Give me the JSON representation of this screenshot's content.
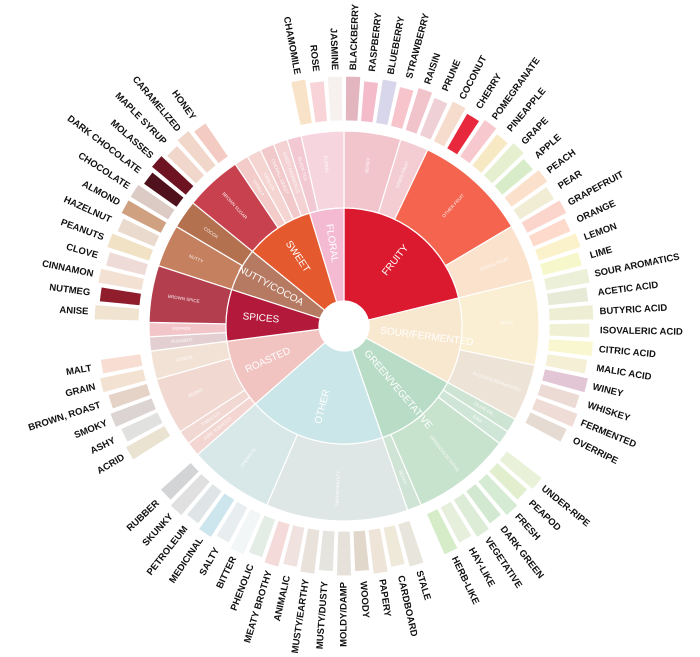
{
  "chart_data": {
    "type": "sunburst",
    "title": "",
    "categories": [
      {
        "name": "FRUITY",
        "color": "#dc1a2f",
        "children": [
          {
            "name": "BERRY",
            "color": "#f2c5cd",
            "children": [
              {
                "name": "BLACKBERRY",
                "color": "#e2b5bf"
              },
              {
                "name": "RASPBERRY",
                "color": "#f4bccb"
              },
              {
                "name": "BLUEBERRY",
                "color": "#d8d6ea"
              },
              {
                "name": "STRAWBERRY",
                "color": "#f7c4cc"
              }
            ]
          },
          {
            "name": "DRIED FRUIT",
            "color": "#f4cdd3",
            "children": [
              {
                "name": "RAISIN",
                "color": "#f1c3cb"
              },
              {
                "name": "PRUNE",
                "color": "#eed0d6"
              }
            ]
          },
          {
            "name": "OTHER FRUIT",
            "color": "#f4644e",
            "children": [
              {
                "name": "COCONUT",
                "color": "#f6dccc"
              },
              {
                "name": "CHERRY",
                "color": "#e8283d"
              },
              {
                "name": "POMEGRANATE",
                "color": "#f7c9cf"
              },
              {
                "name": "PINEAPPLE",
                "color": "#f8e9c5"
              },
              {
                "name": "GRAPE",
                "color": "#e6efd0"
              },
              {
                "name": "APPLE",
                "color": "#d9ecc9"
              },
              {
                "name": "PEACH",
                "color": "#fbe1cc"
              },
              {
                "name": "PEAR",
                "color": "#f1ecd4"
              }
            ]
          },
          {
            "name": "CITRUS FRUIT",
            "color": "#fbe2cd",
            "children": [
              {
                "name": "GRAPEFRUIT",
                "color": "#fbd5cc"
              },
              {
                "name": "ORANGE",
                "color": "#fddacb"
              },
              {
                "name": "LEMON",
                "color": "#fbf2cc"
              },
              {
                "name": "LIME",
                "color": "#f6f8cc"
              }
            ]
          }
        ]
      },
      {
        "name": "SOUR/FERMENTED",
        "color": "#f8e8cf",
        "children": [
          {
            "name": "SOUR",
            "color": "#faefd2",
            "children": [
              {
                "name": "SOUR AROMATICS",
                "color": "#ecf0d9"
              },
              {
                "name": "ACETIC ACID",
                "color": "#e6ead7"
              },
              {
                "name": "BUTYRIC ACID",
                "color": "#eeeed4"
              },
              {
                "name": "ISOVALERIC ACID",
                "color": "#f0f1d4"
              },
              {
                "name": "CITRIC ACID",
                "color": "#f9f7cf"
              },
              {
                "name": "MALIC ACID",
                "color": "#f4efd5"
              }
            ]
          },
          {
            "name": "ALCOHOL/FERMENTED",
            "color": "#ede3d6",
            "children": [
              {
                "name": "WINEY",
                "color": "#e2c6d6"
              },
              {
                "name": "WHISKEY",
                "color": "#ecdad5"
              },
              {
                "name": "FERMENTED",
                "color": "#f0dcd7"
              },
              {
                "name": "OVERRIPE",
                "color": "#e6dbd2"
              }
            ]
          }
        ]
      },
      {
        "name": "GREEN/VEGETATIVE",
        "color": "#b8dcc5",
        "children": [
          {
            "name": "OLIVE OIL",
            "color": "#cde4d3",
            "children": []
          },
          {
            "name": "RAW",
            "color": "#cfe6d6",
            "children": []
          },
          {
            "name": "GREEN/VEGETATIVE",
            "color": "#c7e2cd",
            "children": [
              {
                "name": "UNDER-RIPE",
                "color": "#e9f2d9"
              },
              {
                "name": "PEAPOD",
                "color": "#e2efcf"
              },
              {
                "name": "FRESH",
                "color": "#d6ebd3"
              },
              {
                "name": "DARK GREEN",
                "color": "#d2e8d0"
              },
              {
                "name": "VEGETATIVE",
                "color": "#dcecd6"
              },
              {
                "name": "HAY-LIKE",
                "color": "#e5efdc"
              },
              {
                "name": "HERB-LIKE",
                "color": "#d6ecc8"
              }
            ]
          },
          {
            "name": "BEANY",
            "color": "#cfe4d4",
            "children": []
          }
        ]
      },
      {
        "name": "OTHER",
        "color": "#cae6e9",
        "children": [
          {
            "name": "PAPERY/MUSTY",
            "color": "#dfe6e6",
            "children": [
              {
                "name": "STALE",
                "color": "#e7e5dc"
              },
              {
                "name": "CARDBOARD",
                "color": "#efe9da"
              },
              {
                "name": "PAPERY",
                "color": "#eee4d8"
              },
              {
                "name": "WOODY",
                "color": "#e1d7cb"
              },
              {
                "name": "MOLDY/DAMP",
                "color": "#e6e2db"
              },
              {
                "name": "MUSTY/DUSTY",
                "color": "#e6e4de"
              },
              {
                "name": "MUSTY/EARTHY",
                "color": "#e8e2da"
              },
              {
                "name": "ANIMALIC",
                "color": "#efe2df"
              },
              {
                "name": "MEATY BROTHY",
                "color": "#f5dada"
              },
              {
                "name": "PHENOLIC",
                "color": "#e4ece6"
              }
            ]
          },
          {
            "name": "CHEMICAL",
            "color": "#d8e8e8",
            "children": [
              {
                "name": "BITTER",
                "color": "#f2f6f6"
              },
              {
                "name": "SALTY",
                "color": "#e8eef0"
              },
              {
                "name": "MEDICINAL",
                "color": "#cde5ec"
              },
              {
                "name": "PETROLEUM",
                "color": "#dfe5e6"
              },
              {
                "name": "SKUNKY",
                "color": "#e0e0e0"
              },
              {
                "name": "RUBBER",
                "color": "#d2d4d6"
              }
            ]
          }
        ]
      },
      {
        "name": "ROASTED",
        "color": "#f1c4c2",
        "children": [
          {
            "name": "PIPE TOBACCO",
            "color": "#f3d6d1",
            "children": []
          },
          {
            "name": "TOBACCO",
            "color": "#f1d8d2",
            "children": []
          },
          {
            "name": "BURNT",
            "color": "#f1d9d2",
            "children": [
              {
                "name": "ACRID",
                "color": "#ebe3d2"
              },
              {
                "name": "ASHY",
                "color": "#e1e1df"
              },
              {
                "name": "SMOKY",
                "color": "#dcd4d2"
              },
              {
                "name": "BROWN, ROAST",
                "color": "#e5d3c8"
              }
            ]
          },
          {
            "name": "CEREAL",
            "color": "#f2e2d5",
            "children": [
              {
                "name": "GRAIN",
                "color": "#f3e2d2"
              },
              {
                "name": "MALT",
                "color": "#f7ddd2"
              }
            ]
          }
        ]
      },
      {
        "name": "SPICES",
        "color": "#b2193a",
        "children": [
          {
            "name": "PUNGENT",
            "color": "#e3cfd2",
            "children": []
          },
          {
            "name": "PEPPER",
            "color": "#f2c5c9",
            "children": []
          },
          {
            "name": "BROWN SPICE",
            "color": "#b23e4e",
            "children": [
              {
                "name": "ANISE",
                "color": "#f0e3d0"
              },
              {
                "name": "NUTMEG",
                "color": "#8f1d2c"
              },
              {
                "name": "CINNAMON",
                "color": "#f3e1d4"
              },
              {
                "name": "CLOVE",
                "color": "#eedbd7"
              }
            ]
          }
        ]
      },
      {
        "name": "NUTTY/COCOA",
        "color": "#b67a62",
        "children": [
          {
            "name": "NUTTY",
            "color": "#c58060",
            "children": [
              {
                "name": "PEANUTS",
                "color": "#f1e1c5"
              },
              {
                "name": "HAZELNUT",
                "color": "#eadacd"
              },
              {
                "name": "ALMOND",
                "color": "#cfa181"
              }
            ]
          },
          {
            "name": "COCOA",
            "color": "#b4714f",
            "children": [
              {
                "name": "CHOCOLATE",
                "color": "#dccac5"
              },
              {
                "name": "DARK CHOCOLATE",
                "color": "#4f121c"
              }
            ]
          }
        ]
      },
      {
        "name": "SWEET",
        "color": "#e5592e",
        "children": [
          {
            "name": "BROWN SUGAR",
            "color": "#c8414e",
            "children": [
              {
                "name": "MOLASSES",
                "color": "#6e1322"
              },
              {
                "name": "MAPLE SYRUP",
                "color": "#f1d6cb"
              },
              {
                "name": "CARAMELIZED",
                "color": "#f0d7c9"
              },
              {
                "name": "HONEY",
                "color": "#f4cbc2"
              }
            ]
          },
          {
            "name": "VANILLA",
            "color": "#f3cbc9",
            "children": []
          },
          {
            "name": "VANILLIN",
            "color": "#f5d5d2",
            "children": []
          },
          {
            "name": "OVERALL SWEET",
            "color": "#f2c9cb",
            "children": []
          },
          {
            "name": "SWEET AROMATICS",
            "color": "#f4d1d3",
            "children": []
          }
        ]
      },
      {
        "name": "FLORAL",
        "color": "#f3bad1",
        "children": [
          {
            "name": "BLACK TEA",
            "color": "#f2c8d3",
            "children": []
          },
          {
            "name": "FLORAL",
            "color": "#f7d5df",
            "children": [
              {
                "name": "CHAMOMILE",
                "color": "#f9e3c8"
              },
              {
                "name": "ROSE",
                "color": "#f8d3d8"
              },
              {
                "name": "JASMINE",
                "color": "#f6f0ee"
              }
            ]
          }
        ]
      }
    ]
  }
}
